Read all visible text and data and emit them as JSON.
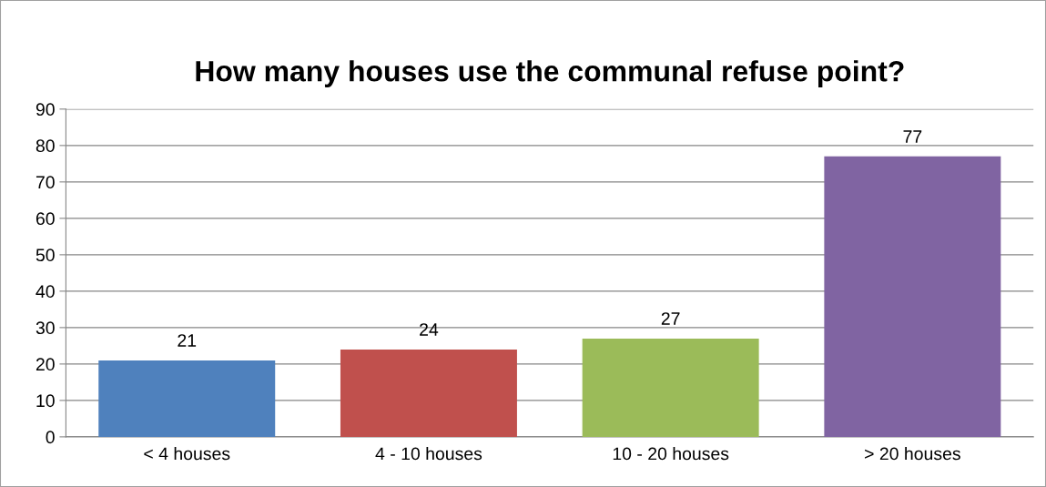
{
  "chart_data": {
    "type": "bar",
    "title": "How many houses use the communal refuse point?",
    "categories": [
      "< 4 houses",
      "4 - 10 houses",
      "10 - 20 houses",
      "> 20 houses"
    ],
    "values": [
      21,
      24,
      27,
      77
    ],
    "colors": [
      "#4f81bd",
      "#c0504d",
      "#9bbb59",
      "#8064a2"
    ],
    "ylim": [
      0,
      90
    ],
    "yticks": [
      0,
      10,
      20,
      30,
      40,
      50,
      60,
      70,
      80,
      90
    ],
    "grid": "y",
    "data_labels": true
  }
}
